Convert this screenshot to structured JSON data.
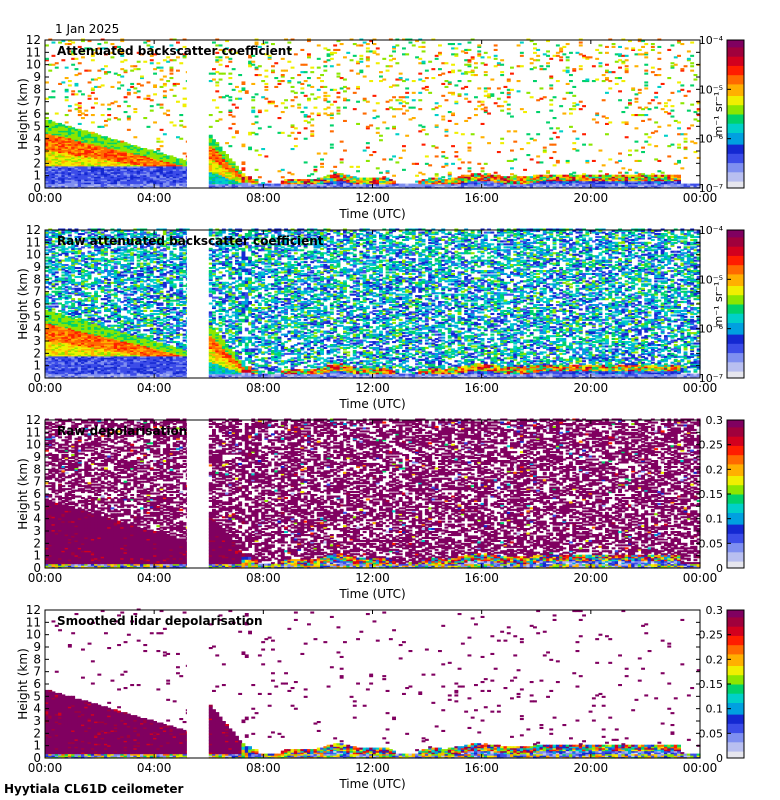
{
  "date_label": "1 Jan 2025",
  "footer": "Hyytiala CL61D ceilometer",
  "colors": {
    "background": "#ffffff",
    "axis": "#000000",
    "gap": "#ffffff"
  },
  "colorscale": [
    "#e6e6ee",
    "#b8bff0",
    "#7f8ff0",
    "#3c4de8",
    "#1428d2",
    "#00a0e0",
    "#00d0c8",
    "#00d26a",
    "#8ce600",
    "#f0ef00",
    "#ffb000",
    "#ff6a00",
    "#ff1e00",
    "#d2001e",
    "#a0003c",
    "#800060"
  ],
  "chart_data": [
    {
      "type": "heatmap",
      "title": "Attenuated backscatter coefficient",
      "xlabel": "Time (UTC)",
      "ylabel": "Height (km)",
      "xlim": [
        0,
        24
      ],
      "ylim": [
        0,
        12
      ],
      "xticks": [
        "00:00",
        "04:00",
        "08:00",
        "12:00",
        "16:00",
        "20:00",
        "00:00"
      ],
      "yticks": [
        "0",
        "1",
        "2",
        "3",
        "4",
        "5",
        "6",
        "7",
        "8",
        "9",
        "10",
        "11",
        "12"
      ],
      "data_gap_hours": [
        5.2,
        5.9
      ],
      "colorbar": {
        "scale": "log",
        "unit": "m⁻¹ sr⁻¹",
        "ticks": [
          "10⁻⁷",
          "10⁻⁶",
          "10⁻⁵",
          "10⁻⁴"
        ]
      }
    },
    {
      "type": "heatmap",
      "title": "Raw attenuated backscatter coefficient",
      "xlabel": "Time (UTC)",
      "ylabel": "Height (km)",
      "xlim": [
        0,
        24
      ],
      "ylim": [
        0,
        12
      ],
      "xticks": [
        "00:00",
        "04:00",
        "08:00",
        "12:00",
        "16:00",
        "20:00",
        "00:00"
      ],
      "yticks": [
        "0",
        "1",
        "2",
        "3",
        "4",
        "5",
        "6",
        "7",
        "8",
        "9",
        "10",
        "11",
        "12"
      ],
      "data_gap_hours": [
        5.2,
        5.9
      ],
      "colorbar": {
        "scale": "log",
        "unit": "m⁻¹ sr⁻¹",
        "ticks": [
          "10⁻⁷",
          "10⁻⁶",
          "10⁻⁵",
          "10⁻⁴"
        ]
      }
    },
    {
      "type": "heatmap",
      "title": "Raw depolarisation",
      "xlabel": "Time (UTC)",
      "ylabel": "Height (km)",
      "xlim": [
        0,
        24
      ],
      "ylim": [
        0,
        12
      ],
      "xticks": [
        "00:00",
        "04:00",
        "08:00",
        "12:00",
        "16:00",
        "20:00",
        "00:00"
      ],
      "yticks": [
        "0",
        "1",
        "2",
        "3",
        "4",
        "5",
        "6",
        "7",
        "8",
        "9",
        "10",
        "11",
        "12"
      ],
      "data_gap_hours": [
        5.2,
        5.9
      ],
      "colorbar": {
        "scale": "linear",
        "unit": "",
        "ticks": [
          "0",
          "0.05",
          "0.1",
          "0.15",
          "0.2",
          "0.25",
          "0.3"
        ]
      }
    },
    {
      "type": "heatmap",
      "title": "Smoothed lidar depolarisation",
      "xlabel": "Time (UTC)",
      "ylabel": "Height (km)",
      "xlim": [
        0,
        24
      ],
      "ylim": [
        0,
        12
      ],
      "xticks": [
        "00:00",
        "04:00",
        "08:00",
        "12:00",
        "16:00",
        "20:00",
        "00:00"
      ],
      "yticks": [
        "0",
        "1",
        "2",
        "3",
        "4",
        "5",
        "6",
        "7",
        "8",
        "9",
        "10",
        "11",
        "12"
      ],
      "data_gap_hours": [
        5.2,
        5.9
      ],
      "colorbar": {
        "scale": "linear",
        "unit": "",
        "ticks": [
          "0",
          "0.05",
          "0.1",
          "0.15",
          "0.2",
          "0.25",
          "0.3"
        ]
      }
    }
  ]
}
